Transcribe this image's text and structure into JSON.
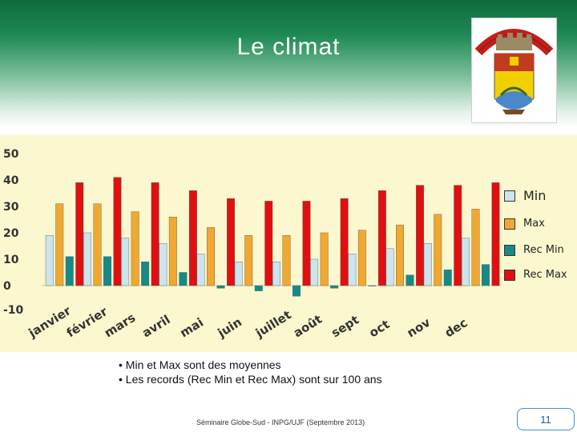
{
  "slide": {
    "title": "Le climat",
    "notes": [
      "• Min et  Max sont des moyennes",
      "• Les records (Rec Min et Rec Max) sont sur 100 ans"
    ],
    "footer": "Séminaire Globe-Sud - INPG/UJF (Septembre 2013)",
    "page_number": "11"
  },
  "chart_data": {
    "type": "bar",
    "categories": [
      "janvier",
      "février",
      "mars",
      "avril",
      "mai",
      "juin",
      "juillet",
      "août",
      "sept",
      "oct",
      "nov",
      "dec"
    ],
    "series": [
      {
        "name": "Min",
        "color": "#cce4ec",
        "values": [
          19,
          20,
          18,
          16,
          12,
          9,
          9,
          10,
          12,
          14,
          16,
          18
        ]
      },
      {
        "name": "Max",
        "color": "#f0a830",
        "values": [
          31,
          31,
          28,
          26,
          22,
          19,
          19,
          20,
          21,
          23,
          27,
          29
        ]
      },
      {
        "name": "Rec Min",
        "color": "#168a86",
        "values": [
          11,
          11,
          9,
          5,
          -1,
          -2,
          -4,
          -1,
          0,
          4,
          6,
          8
        ]
      },
      {
        "name": "Rec Max",
        "color": "#e01010",
        "values": [
          39,
          41,
          39,
          36,
          33,
          32,
          32,
          33,
          36,
          38,
          38,
          39
        ]
      }
    ],
    "yticks": [
      "50",
      "40",
      "30",
      "20",
      "10",
      "0",
      "-10"
    ],
    "ylim": [
      -10,
      50
    ],
    "legend": "right",
    "grid": false
  }
}
